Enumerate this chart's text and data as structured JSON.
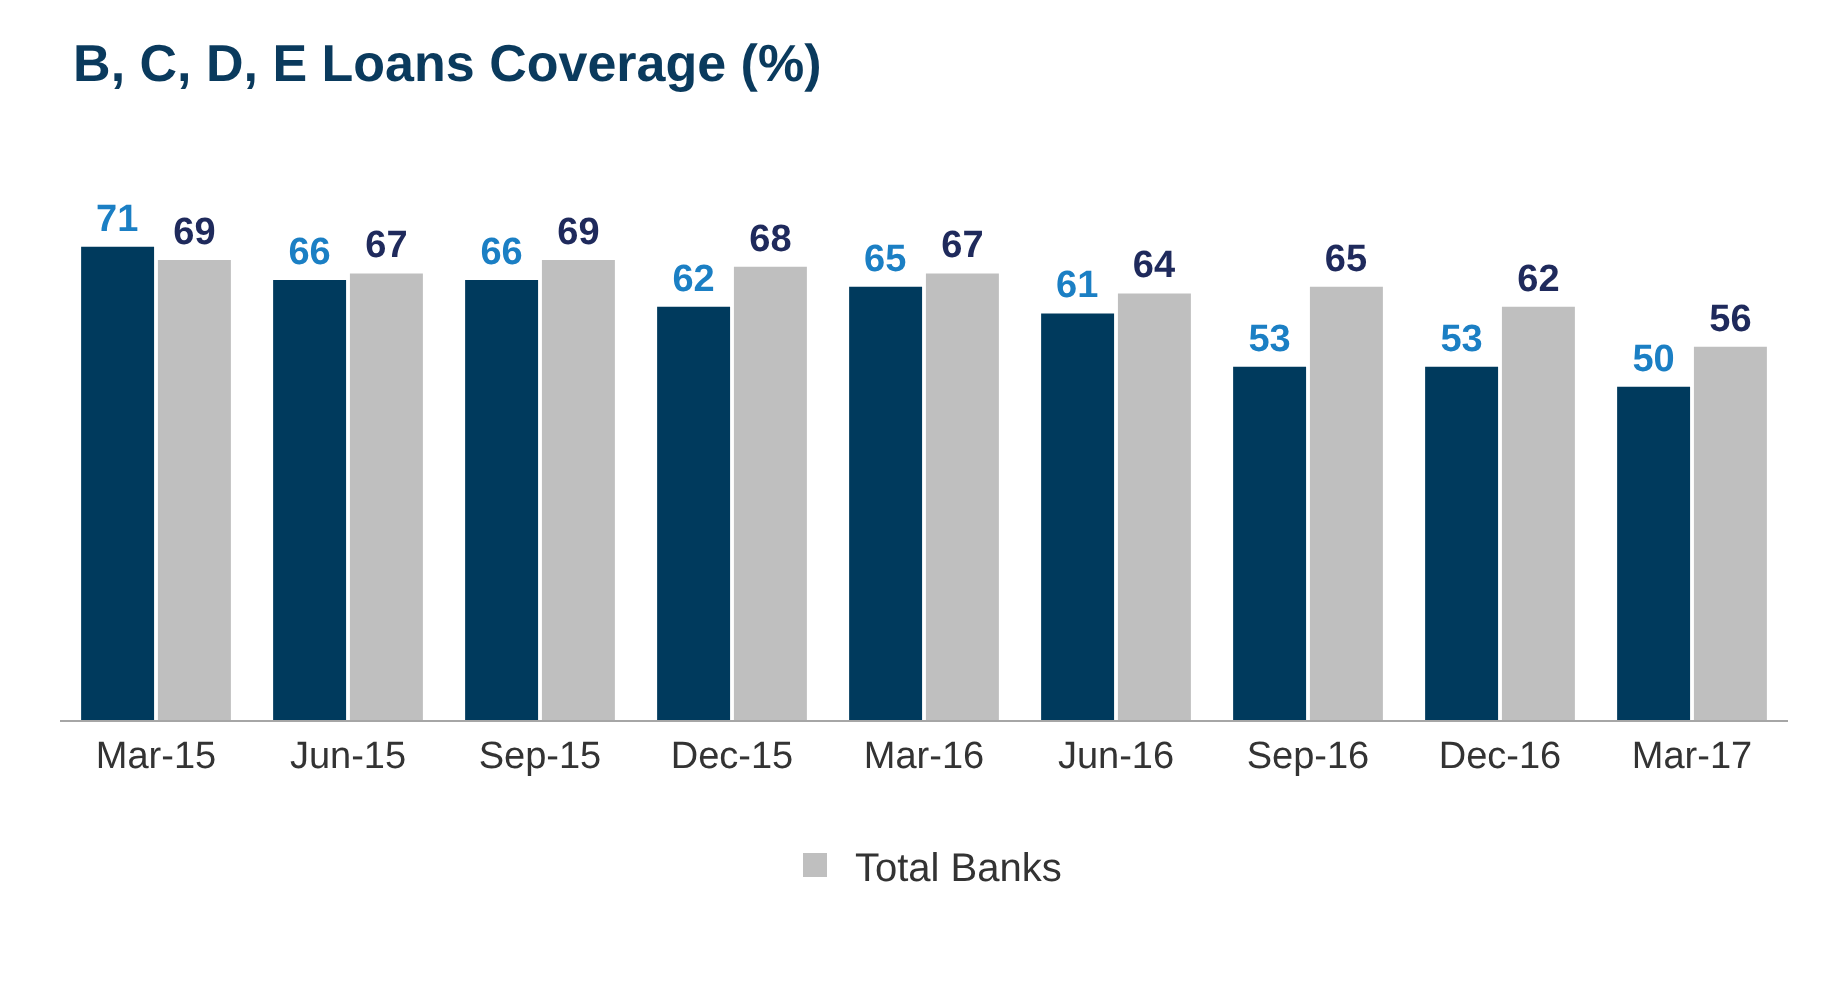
{
  "chart_data": {
    "type": "bar",
    "title": "B, C, D, E Loans Coverage (%)",
    "categories": [
      "Mar-15",
      "Jun-15",
      "Sep-15",
      "Dec-15",
      "Mar-16",
      "Jun-16",
      "Sep-16",
      "Dec-16",
      "Mar-17"
    ],
    "series": [
      {
        "color": "#003a5d",
        "values": [
          71,
          66,
          66,
          62,
          65,
          61,
          53,
          53,
          50
        ]
      },
      {
        "name": "Total Banks",
        "color": "#bfbfbf",
        "values": [
          69,
          67,
          69,
          68,
          67,
          64,
          65,
          62,
          56
        ]
      }
    ],
    "data_labels": true,
    "legend": "bottom"
  }
}
